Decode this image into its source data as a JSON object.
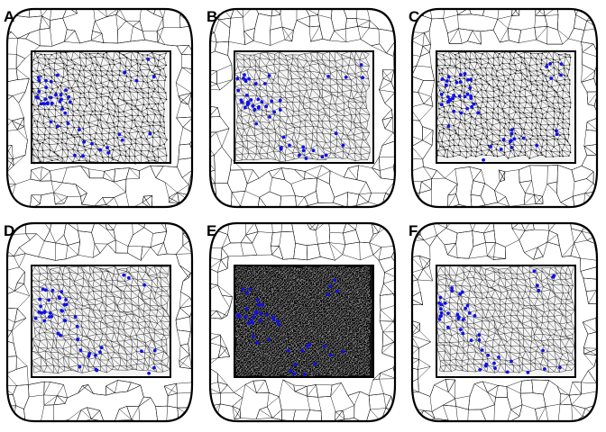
{
  "panels": [
    {
      "label": "A",
      "density": 0.55,
      "mesh_dots": true,
      "dark": false
    },
    {
      "label": "B",
      "density": 0.35,
      "mesh_dots": false,
      "dark": false
    },
    {
      "label": "C",
      "density": 0.65,
      "mesh_dots": true,
      "dark": false
    },
    {
      "label": "D",
      "density": 0.4,
      "mesh_dots": false,
      "dark": false
    },
    {
      "label": "E",
      "density": 1.0,
      "mesh_dots": true,
      "dark": true
    },
    {
      "label": "F",
      "density": 0.4,
      "mesh_dots": false,
      "dark": false
    }
  ],
  "colors": {
    "mesh_line": "#000000",
    "mesh_dot": "#000000",
    "marker": "#1010e6",
    "outline": "#000000",
    "background": "#ffffff"
  }
}
